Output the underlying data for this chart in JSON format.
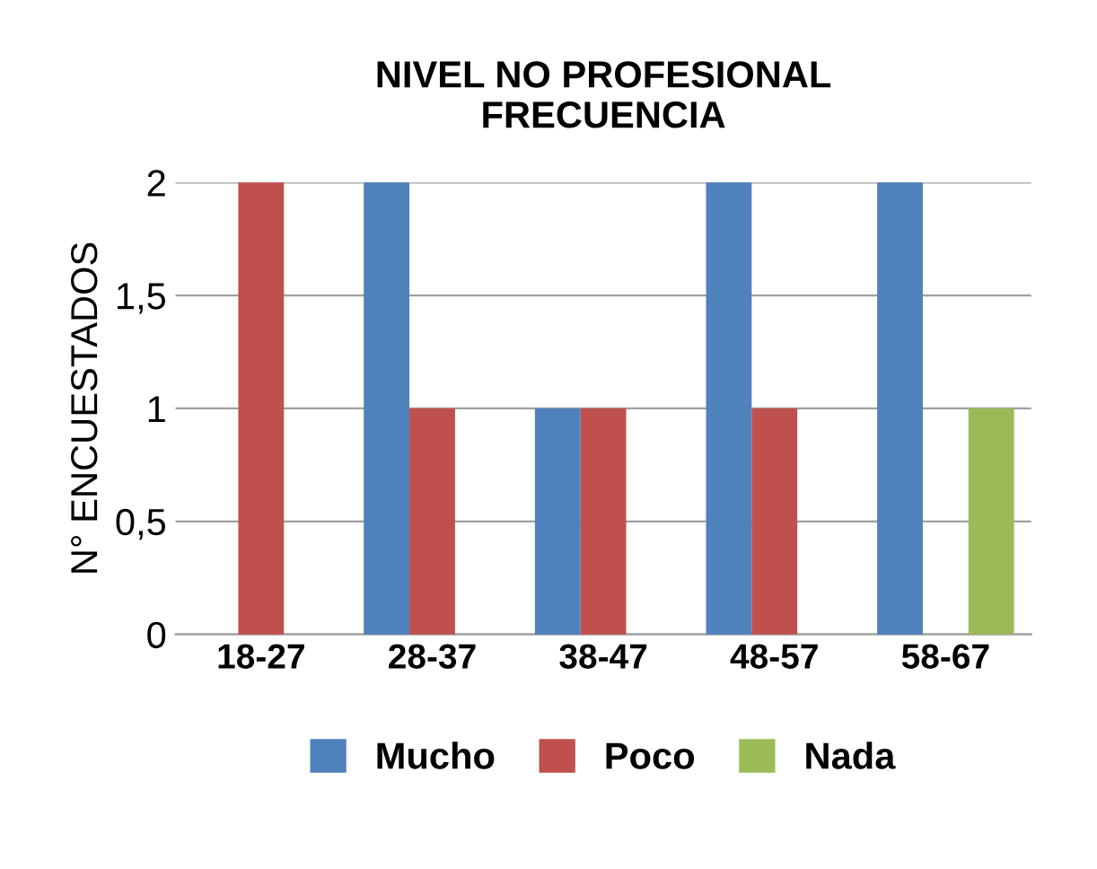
{
  "chart_data": {
    "type": "bar",
    "title": "NIVEL NO PROFESIONAL\nFRECUENCIA",
    "ylabel": "N° ENCUESTADOS",
    "categories": [
      "18-27",
      "28-37",
      "38-47",
      "48-57",
      "58-67"
    ],
    "series": [
      {
        "name": "Mucho",
        "color": "#4f81bd",
        "values": [
          0,
          2,
          1,
          2,
          2
        ]
      },
      {
        "name": "Poco",
        "color": "#c0504d",
        "values": [
          2,
          1,
          1,
          1,
          0
        ]
      },
      {
        "name": "Nada",
        "color": "#9bbb59",
        "values": [
          0,
          0,
          0,
          0,
          1
        ]
      }
    ],
    "ylim": [
      0,
      2
    ],
    "yticks": [
      0,
      {
        "value": 0.5,
        "label": "0,5"
      },
      1,
      {
        "value": 1.5,
        "label": "1,5"
      },
      2
    ],
    "grid": "y",
    "legend": "bottom"
  }
}
